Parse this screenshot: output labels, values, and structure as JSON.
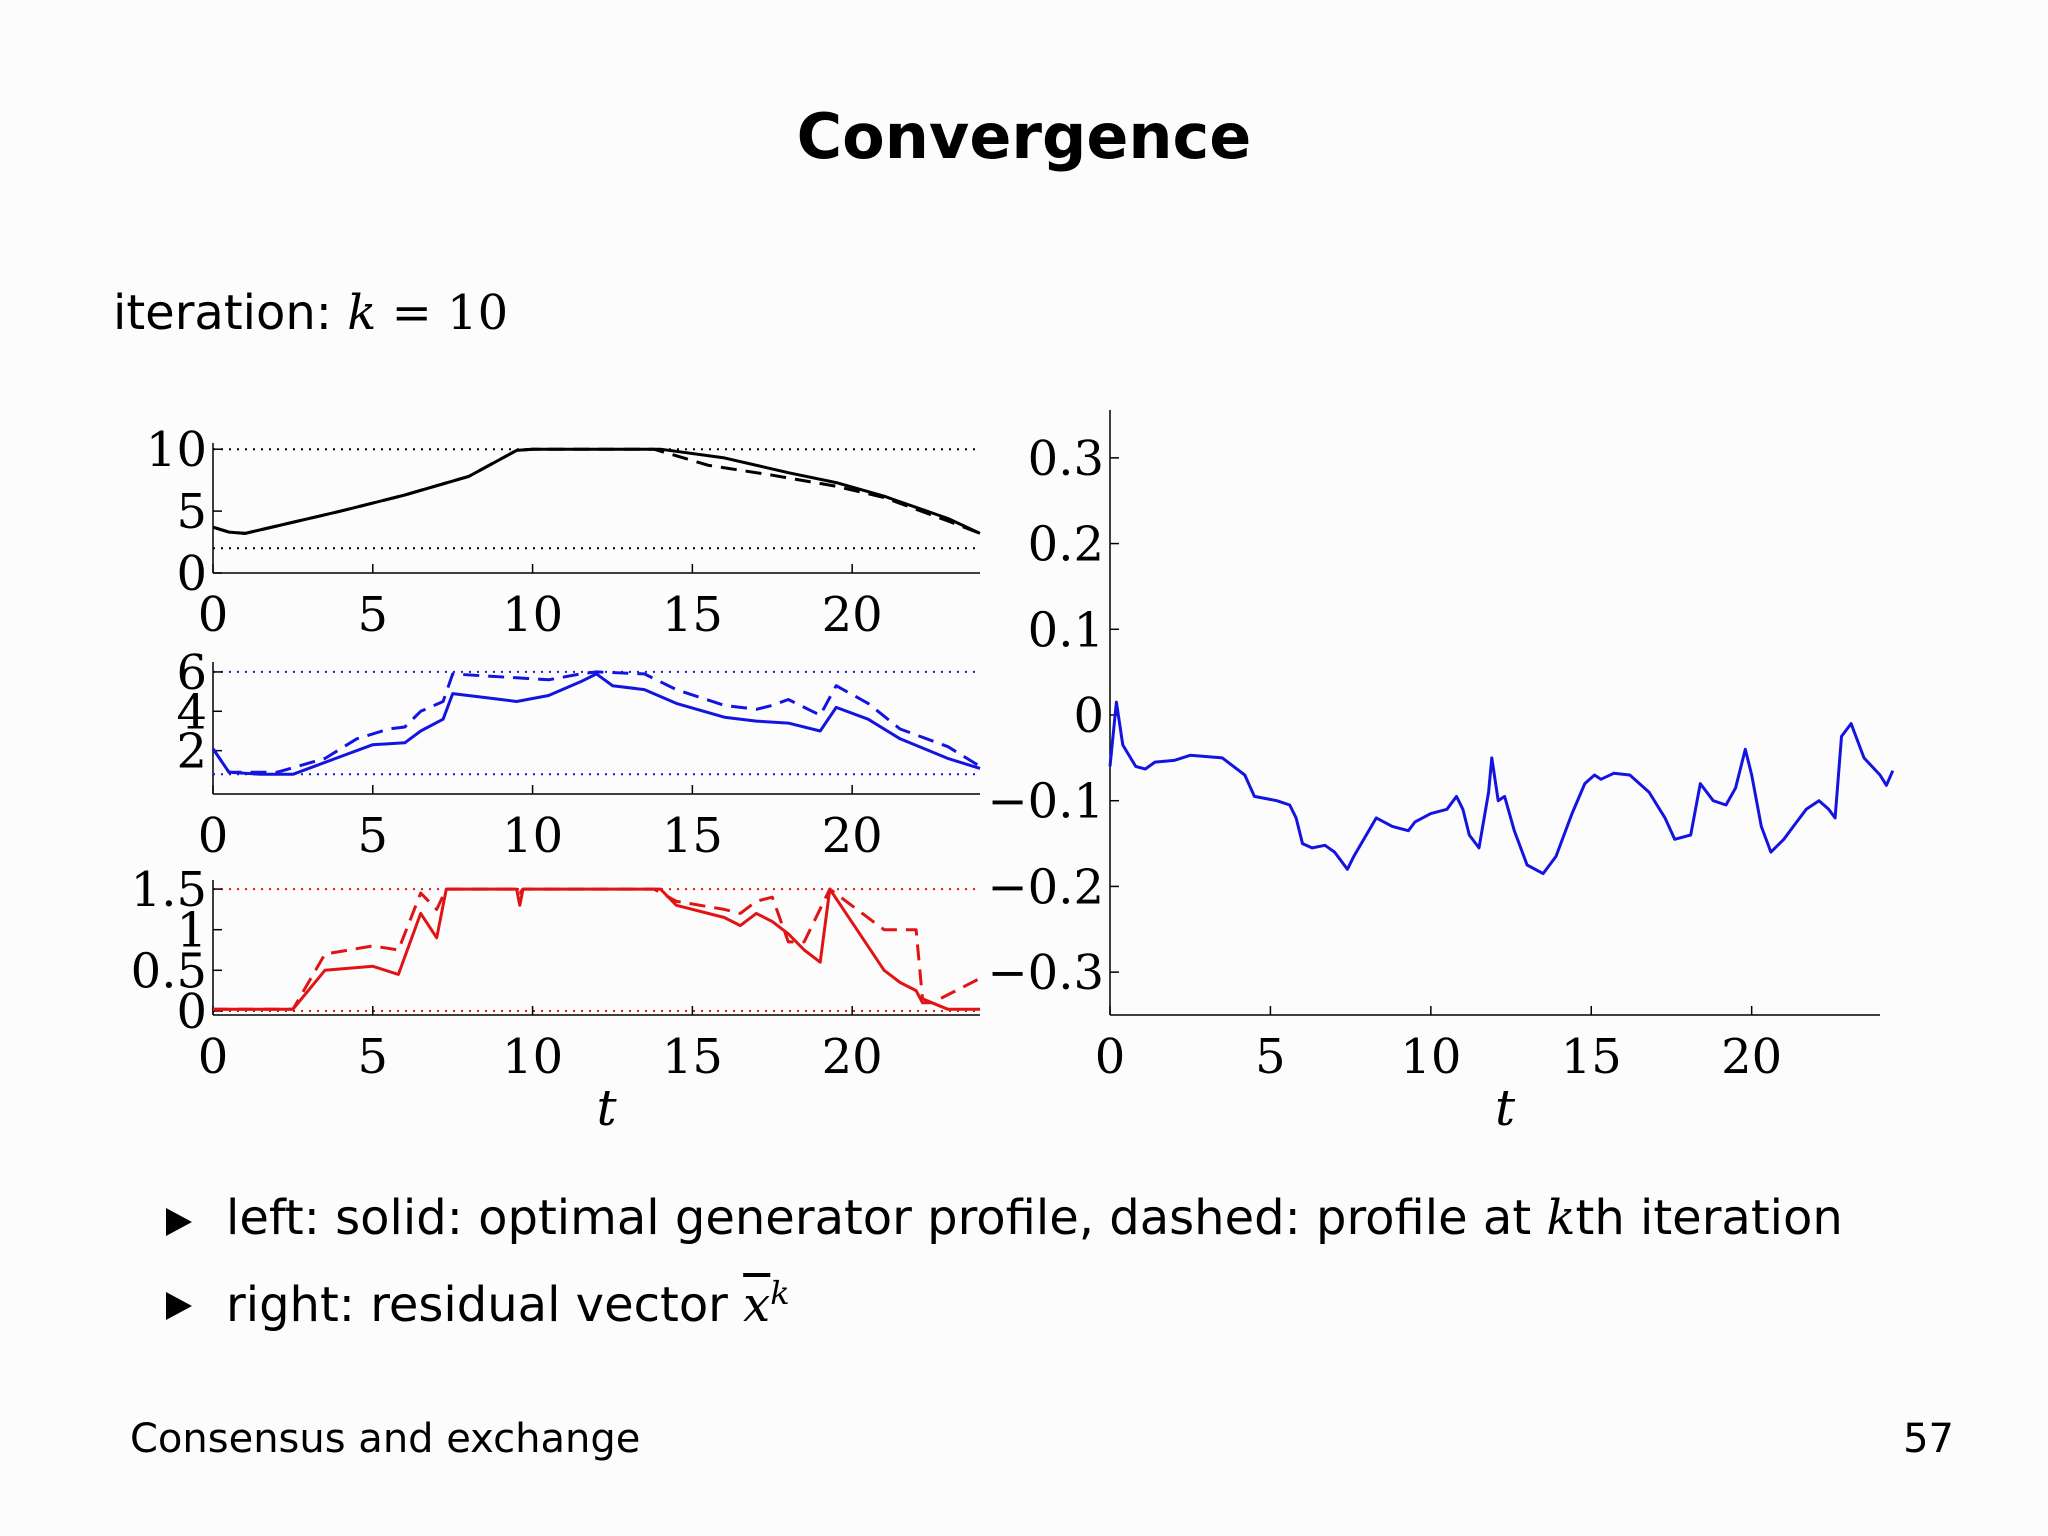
{
  "slide": {
    "title": "Convergence",
    "iteration_label": "iteration:",
    "iteration_var": "k",
    "iteration_eq": "= 10",
    "bullets": [
      {
        "pre": "left: solid: optimal generator profile, dashed: profile at ",
        "var": "k",
        "post": "th iteration"
      },
      {
        "pre": "right: residual vector ",
        "var": "x",
        "sup": "k"
      }
    ],
    "footer_left": "Consensus and exchange",
    "page_number": "57"
  },
  "colors": {
    "black": "#000000",
    "blue": "#1414e0",
    "red": "#e01414"
  },
  "chart_data": [
    {
      "type": "line",
      "name": "panel-top",
      "color": "#000000",
      "xlim": [
        0,
        24
      ],
      "ylim": [
        0,
        10.5
      ],
      "xticks": [
        "0",
        "5",
        "10",
        "15",
        "20"
      ],
      "yticks": [
        "0",
        "5",
        "10"
      ],
      "hlines": [
        2,
        10
      ],
      "xlabel": "",
      "series": [
        {
          "name": "solid",
          "style": "solid",
          "points": [
            [
              0,
              3.7
            ],
            [
              0.5,
              3.3
            ],
            [
              1,
              3.2
            ],
            [
              2,
              3.8
            ],
            [
              4,
              5.0
            ],
            [
              6,
              6.3
            ],
            [
              8,
              7.8
            ],
            [
              9.5,
              9.9
            ],
            [
              10,
              10
            ],
            [
              14,
              10
            ],
            [
              16,
              9.3
            ],
            [
              18,
              8.1
            ],
            [
              19.5,
              7.3
            ],
            [
              21,
              6.2
            ],
            [
              23,
              4.4
            ],
            [
              24,
              3.2
            ]
          ]
        },
        {
          "name": "dashed",
          "style": "dashed",
          "points": [
            [
              0,
              3.7
            ],
            [
              0.5,
              3.3
            ],
            [
              1,
              3.2
            ],
            [
              2,
              3.8
            ],
            [
              4,
              5.0
            ],
            [
              6,
              6.3
            ],
            [
              8,
              7.8
            ],
            [
              9.5,
              9.9
            ],
            [
              10,
              10
            ],
            [
              13.8,
              10
            ],
            [
              15.5,
              8.7
            ],
            [
              17.5,
              7.9
            ],
            [
              19.5,
              7.0
            ],
            [
              21,
              6.1
            ],
            [
              23,
              4.2
            ],
            [
              24,
              3.2
            ]
          ]
        }
      ]
    },
    {
      "type": "line",
      "name": "panel-middle",
      "color": "#1414e0",
      "xlim": [
        0,
        24
      ],
      "ylim": [
        0,
        6.2
      ],
      "xticks": [
        "0",
        "5",
        "10",
        "15",
        "20"
      ],
      "yticks": [
        "2",
        "4",
        "6"
      ],
      "hlines": [
        0.8,
        6
      ],
      "xlabel": "",
      "series": [
        {
          "name": "solid",
          "style": "solid",
          "points": [
            [
              0,
              2.1
            ],
            [
              0.5,
              0.9
            ],
            [
              1.5,
              0.8
            ],
            [
              2.5,
              0.8
            ],
            [
              4,
              1.7
            ],
            [
              5,
              2.3
            ],
            [
              6,
              2.4
            ],
            [
              6.5,
              3.0
            ],
            [
              7.2,
              3.6
            ],
            [
              7.5,
              4.9
            ],
            [
              8.5,
              4.7
            ],
            [
              9.5,
              4.5
            ],
            [
              10.5,
              4.8
            ],
            [
              11.5,
              5.5
            ],
            [
              12,
              5.9
            ],
            [
              12.5,
              5.3
            ],
            [
              13.5,
              5.1
            ],
            [
              14.5,
              4.4
            ],
            [
              16,
              3.7
            ],
            [
              17,
              3.5
            ],
            [
              18,
              3.4
            ],
            [
              19,
              3.0
            ],
            [
              19.5,
              4.2
            ],
            [
              20.5,
              3.6
            ],
            [
              21.5,
              2.6
            ],
            [
              23,
              1.6
            ],
            [
              24,
              1.1
            ]
          ]
        },
        {
          "name": "dashed",
          "style": "dashed",
          "points": [
            [
              0,
              2.1
            ],
            [
              0.5,
              0.9
            ],
            [
              2,
              0.9
            ],
            [
              3.5,
              1.6
            ],
            [
              4.5,
              2.6
            ],
            [
              5.5,
              3.1
            ],
            [
              6,
              3.2
            ],
            [
              6.5,
              4.0
            ],
            [
              7.2,
              4.5
            ],
            [
              7.5,
              5.9
            ],
            [
              8.5,
              5.8
            ],
            [
              9.5,
              5.7
            ],
            [
              10.5,
              5.6
            ],
            [
              11.5,
              5.9
            ],
            [
              12,
              6.0
            ],
            [
              13.5,
              5.9
            ],
            [
              14.5,
              5.1
            ],
            [
              16,
              4.3
            ],
            [
              17,
              4.1
            ],
            [
              17.5,
              4.3
            ],
            [
              18,
              4.6
            ],
            [
              19,
              3.8
            ],
            [
              19.5,
              5.3
            ],
            [
              20.5,
              4.4
            ],
            [
              21.5,
              3.1
            ],
            [
              23,
              2.2
            ],
            [
              24,
              1.2
            ]
          ]
        }
      ]
    },
    {
      "type": "line",
      "name": "panel-bottom",
      "color": "#e01414",
      "xlim": [
        0,
        24
      ],
      "ylim": [
        -0.05,
        1.55
      ],
      "xticks": [
        "0",
        "5",
        "10",
        "15",
        "20"
      ],
      "yticks": [
        "0",
        "0.5",
        "1",
        "1.5"
      ],
      "hlines": [
        0,
        1.5
      ],
      "xlabel": "t",
      "series": [
        {
          "name": "solid",
          "style": "solid",
          "points": [
            [
              0,
              0.02
            ],
            [
              2.5,
              0.02
            ],
            [
              3.5,
              0.5
            ],
            [
              5,
              0.55
            ],
            [
              5.8,
              0.45
            ],
            [
              6.5,
              1.2
            ],
            [
              7,
              0.9
            ],
            [
              7.3,
              1.5
            ],
            [
              9.5,
              1.5
            ],
            [
              9.6,
              1.3
            ],
            [
              9.7,
              1.5
            ],
            [
              14,
              1.5
            ],
            [
              14.5,
              1.3
            ],
            [
              16,
              1.15
            ],
            [
              16.5,
              1.05
            ],
            [
              17,
              1.2
            ],
            [
              17.5,
              1.1
            ],
            [
              18,
              0.95
            ],
            [
              18.5,
              0.75
            ],
            [
              19,
              0.6
            ],
            [
              19.3,
              1.5
            ],
            [
              21,
              0.5
            ],
            [
              21.5,
              0.35
            ],
            [
              22,
              0.25
            ],
            [
              22.2,
              0.1
            ],
            [
              22.5,
              0.1
            ],
            [
              23,
              0.02
            ],
            [
              24,
              0.02
            ]
          ]
        },
        {
          "name": "dashed",
          "style": "dashed",
          "points": [
            [
              0,
              0.02
            ],
            [
              2.5,
              0.02
            ],
            [
              3.5,
              0.7
            ],
            [
              5,
              0.8
            ],
            [
              5.8,
              0.75
            ],
            [
              6.5,
              1.45
            ],
            [
              7,
              1.25
            ],
            [
              7.3,
              1.5
            ],
            [
              9.5,
              1.5
            ],
            [
              9.6,
              1.45
            ],
            [
              9.7,
              1.5
            ],
            [
              13.8,
              1.5
            ],
            [
              14.5,
              1.35
            ],
            [
              16,
              1.25
            ],
            [
              16.5,
              1.2
            ],
            [
              17,
              1.35
            ],
            [
              17.5,
              1.4
            ],
            [
              18,
              0.85
            ],
            [
              18.5,
              0.85
            ],
            [
              19.3,
              1.5
            ],
            [
              21,
              1.0
            ],
            [
              22,
              1.0
            ],
            [
              22.2,
              0.15
            ],
            [
              22.5,
              0.1
            ],
            [
              24,
              0.4
            ]
          ]
        }
      ]
    },
    {
      "type": "line",
      "name": "panel-right",
      "color": "#1414e0",
      "xlim": [
        0,
        24
      ],
      "ylim": [
        -0.35,
        0.35
      ],
      "xticks": [
        "0",
        "5",
        "10",
        "15",
        "20"
      ],
      "yticks": [
        "0.3",
        "0.2",
        "0.1",
        "0",
        "−0.1",
        "−0.2",
        "−0.3"
      ],
      "ytick_values": [
        0.3,
        0.2,
        0.1,
        0,
        -0.1,
        -0.2,
        -0.3
      ],
      "hlines": [],
      "xlabel": "t",
      "series": [
        {
          "name": "residual",
          "style": "solid",
          "points": [
            [
              0,
              -0.06
            ],
            [
              0.2,
              0.015
            ],
            [
              0.4,
              -0.035
            ],
            [
              0.8,
              -0.06
            ],
            [
              1.1,
              -0.063
            ],
            [
              1.4,
              -0.055
            ],
            [
              2,
              -0.053
            ],
            [
              2.5,
              -0.047
            ],
            [
              3.5,
              -0.05
            ],
            [
              4.2,
              -0.07
            ],
            [
              4.5,
              -0.095
            ],
            [
              5.2,
              -0.1
            ],
            [
              5.6,
              -0.105
            ],
            [
              5.8,
              -0.12
            ],
            [
              6,
              -0.15
            ],
            [
              6.3,
              -0.155
            ],
            [
              6.7,
              -0.152
            ],
            [
              7,
              -0.16
            ],
            [
              7.2,
              -0.17
            ],
            [
              7.4,
              -0.18
            ],
            [
              7.6,
              -0.165
            ],
            [
              8.3,
              -0.12
            ],
            [
              8.8,
              -0.13
            ],
            [
              9.3,
              -0.135
            ],
            [
              9.5,
              -0.125
            ],
            [
              10,
              -0.115
            ],
            [
              10.5,
              -0.11
            ],
            [
              10.8,
              -0.095
            ],
            [
              11,
              -0.11
            ],
            [
              11.2,
              -0.14
            ],
            [
              11.5,
              -0.155
            ],
            [
              11.8,
              -0.09
            ],
            [
              11.9,
              -0.05
            ],
            [
              12.1,
              -0.1
            ],
            [
              12.3,
              -0.095
            ],
            [
              12.6,
              -0.135
            ],
            [
              13,
              -0.175
            ],
            [
              13.5,
              -0.185
            ],
            [
              13.9,
              -0.165
            ],
            [
              14.4,
              -0.115
            ],
            [
              14.8,
              -0.08
            ],
            [
              15.1,
              -0.07
            ],
            [
              15.3,
              -0.075
            ],
            [
              15.7,
              -0.068
            ],
            [
              16.2,
              -0.07
            ],
            [
              16.8,
              -0.09
            ],
            [
              17.3,
              -0.12
            ],
            [
              17.6,
              -0.145
            ],
            [
              18.1,
              -0.14
            ],
            [
              18.4,
              -0.08
            ],
            [
              18.8,
              -0.1
            ],
            [
              19.2,
              -0.105
            ],
            [
              19.5,
              -0.085
            ],
            [
              19.8,
              -0.04
            ],
            [
              20,
              -0.07
            ],
            [
              20.3,
              -0.13
            ],
            [
              20.6,
              -0.16
            ],
            [
              21,
              -0.145
            ],
            [
              21.3,
              -0.13
            ],
            [
              21.7,
              -0.11
            ],
            [
              22.1,
              -0.1
            ],
            [
              22.4,
              -0.11
            ],
            [
              22.6,
              -0.12
            ],
            [
              22.8,
              -0.025
            ],
            [
              23.1,
              -0.01
            ],
            [
              23.5,
              -0.05
            ],
            [
              24,
              -0.07
            ],
            [
              24.2,
              -0.082
            ],
            [
              24.4,
              -0.065
            ]
          ]
        }
      ]
    }
  ]
}
